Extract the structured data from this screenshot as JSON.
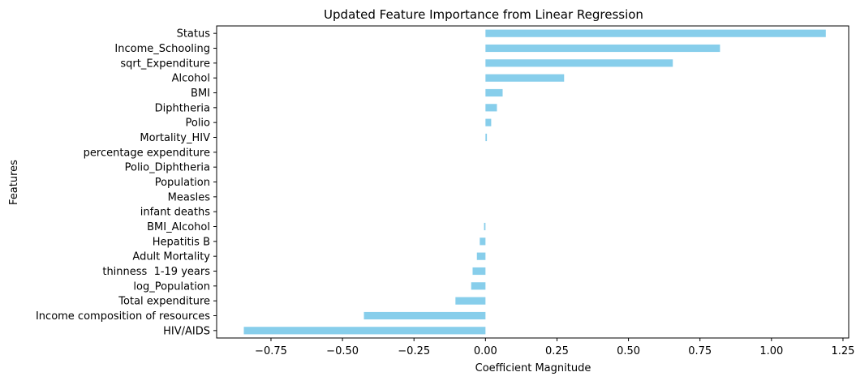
{
  "chart_data": {
    "type": "bar",
    "orientation": "horizontal",
    "title": "Updated Feature Importance from Linear Regression",
    "xlabel": "Coefficient Magnitude",
    "ylabel": "Features",
    "xlim": [
      -0.94,
      1.27
    ],
    "xticks": [
      -0.75,
      -0.5,
      -0.25,
      0.0,
      0.25,
      0.5,
      0.75,
      1.0,
      1.25
    ],
    "xtick_labels": [
      "−0.75",
      "−0.50",
      "−0.25",
      "0.00",
      "0.25",
      "0.50",
      "0.75",
      "1.00",
      "1.25"
    ],
    "grid": false,
    "bar_color": "#87ceeb",
    "categories": [
      "Status",
      "Income_Schooling",
      "sqrt_Expenditure",
      "Alcohol",
      "BMI",
      "Diphtheria",
      "Polio",
      "Mortality_HIV",
      "percentage expenditure",
      "Polio_Diphtheria",
      "Population",
      "Measles",
      "infant deaths",
      "BMI_Alcohol",
      "Hepatitis B",
      "Adult Mortality",
      "thinness  1-19 years",
      "log_Population",
      "Total expenditure",
      "Income composition of resources",
      "HIV/AIDS"
    ],
    "values": [
      1.19,
      0.82,
      0.655,
      0.275,
      0.06,
      0.04,
      0.02,
      0.005,
      0.0,
      0.0,
      0.0,
      0.0,
      0.0,
      -0.005,
      -0.02,
      -0.03,
      -0.045,
      -0.05,
      -0.105,
      -0.425,
      -0.845
    ]
  }
}
